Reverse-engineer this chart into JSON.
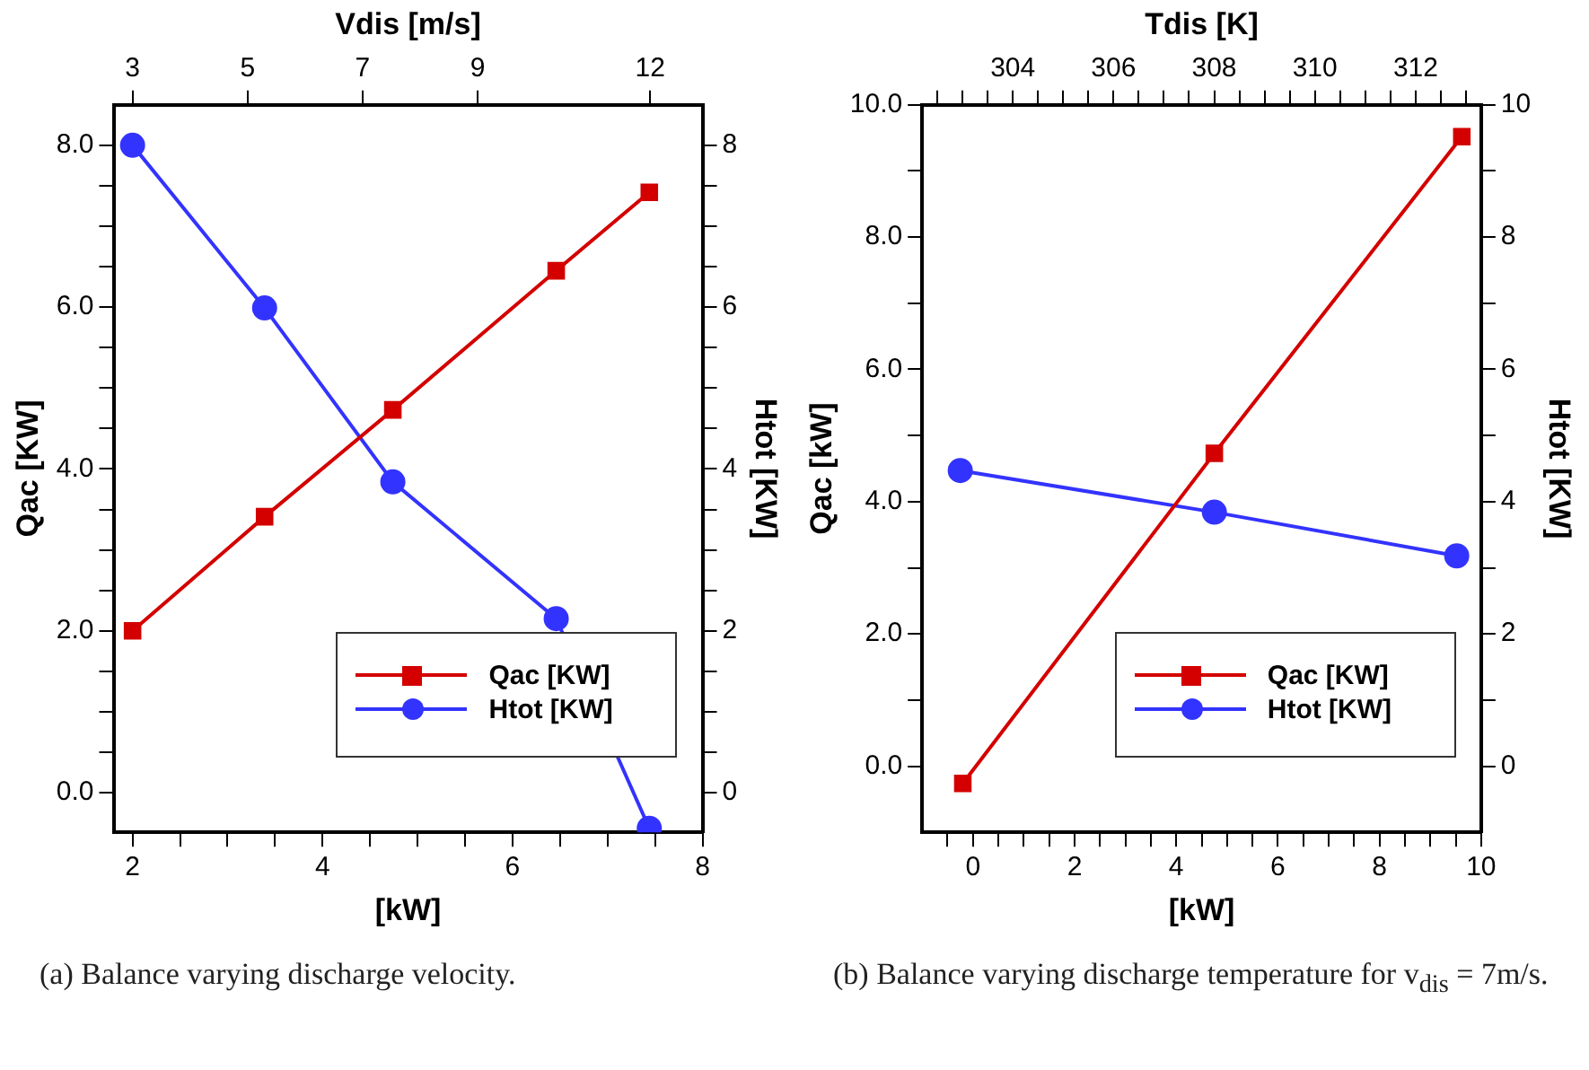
{
  "chart_data": [
    {
      "type": "line",
      "xlabel": "[kW]",
      "ylabel": "Qac [KW]",
      "y2label": "Htot [KW]",
      "x2label": "Vdis [m/s]",
      "legend": "bottom right",
      "xlim": [
        1.8,
        8
      ],
      "xticks": [
        2,
        {
          "value": 2.5,
          "label": null
        },
        {
          "value": 3,
          "label": null
        },
        {
          "value": 3.5,
          "label": null
        },
        4,
        {
          "value": 4.5,
          "label": null
        },
        {
          "value": 5,
          "label": null
        },
        {
          "value": 5.5,
          "label": null
        },
        6,
        {
          "value": 6.5,
          "label": null
        },
        {
          "value": 7,
          "label": null
        },
        {
          "value": 7.5,
          "label": null
        },
        8
      ],
      "x2lim": [
        2.67,
        12.91
      ],
      "x2ticks": [
        3,
        5,
        7,
        9,
        12
      ],
      "ylim": [
        -0.49,
        8.5
      ],
      "yticks": [
        {
          "value": 0,
          "label": "0.0"
        },
        {
          "value": 0.5,
          "label": null
        },
        {
          "value": 1,
          "label": null
        },
        {
          "value": 1.5,
          "label": null
        },
        {
          "value": 2,
          "label": "2.0"
        },
        {
          "value": 2.5,
          "label": null
        },
        {
          "value": 3,
          "label": null
        },
        {
          "value": 3.5,
          "label": null
        },
        {
          "value": 4,
          "label": "4.0"
        },
        {
          "value": 4.5,
          "label": null
        },
        {
          "value": 5,
          "label": null
        },
        {
          "value": 5.5,
          "label": null
        },
        {
          "value": 6,
          "label": "6.0"
        },
        {
          "value": 6.5,
          "label": null
        },
        {
          "value": 7,
          "label": null
        },
        {
          "value": 7.5,
          "label": null
        },
        {
          "value": 8,
          "label": "8.0"
        }
      ],
      "y2lim": [
        -0.49,
        8.5
      ],
      "y2ticks": [
        0,
        {
          "value": 0.5,
          "label": null
        },
        {
          "value": 1,
          "label": null
        },
        {
          "value": 1.5,
          "label": null
        },
        2,
        {
          "value": 2.5,
          "label": null
        },
        {
          "value": 3,
          "label": null
        },
        {
          "value": 3.5,
          "label": null
        },
        4,
        {
          "value": 4.5,
          "label": null
        },
        {
          "value": 5,
          "label": null
        },
        {
          "value": 5.5,
          "label": null
        },
        6,
        {
          "value": 6.5,
          "label": null
        },
        {
          "value": 7,
          "label": null
        },
        {
          "value": 7.5,
          "label": null
        },
        8
      ],
      "series": [
        {
          "name": "Qac [KW]",
          "color": "#d40000",
          "marker": "square",
          "x": [
            2,
            3.39,
            4.74,
            6.46,
            7.44
          ],
          "values": [
            2.0,
            3.41,
            4.73,
            6.45,
            7.42
          ]
        },
        {
          "name": "Htot [KW]",
          "color": "#3333ff",
          "marker": "circle",
          "x": [
            2,
            3.39,
            4.74,
            6.46,
            7.44
          ],
          "values": [
            8.0,
            5.99,
            3.84,
            2.15,
            -0.44
          ]
        }
      ],
      "annotations": [
        "(a) Balance varying discharge velocity."
      ]
    },
    {
      "type": "line",
      "xlabel": "[kW]",
      "ylabel": "Qac [kW]",
      "y2label": "Htot [KW]",
      "x2label": "Tdis [K]",
      "legend": "bottom right",
      "xlim": [
        -1,
        10
      ],
      "xticks": [
        {
          "value": -0.5,
          "label": null
        },
        0,
        {
          "value": 0.5,
          "label": null
        },
        {
          "value": 1,
          "label": null
        },
        {
          "value": 1.5,
          "label": null
        },
        2,
        {
          "value": 2.5,
          "label": null
        },
        {
          "value": 3,
          "label": null
        },
        {
          "value": 3.5,
          "label": null
        },
        4,
        {
          "value": 4.5,
          "label": null
        },
        {
          "value": 5,
          "label": null
        },
        {
          "value": 5.5,
          "label": null
        },
        6,
        {
          "value": 6.5,
          "label": null
        },
        {
          "value": 7,
          "label": null
        },
        {
          "value": 7.5,
          "label": null
        },
        8,
        {
          "value": 8.5,
          "label": null
        },
        {
          "value": 9,
          "label": null
        },
        {
          "value": 9.5,
          "label": null
        },
        10
      ],
      "x2lim": [
        302.2,
        313.3
      ],
      "x2ticks": [
        {
          "value": 302.5,
          "label": null
        },
        {
          "value": 303,
          "label": null
        },
        {
          "value": 303.5,
          "label": null
        },
        304,
        {
          "value": 304.5,
          "label": null
        },
        {
          "value": 305,
          "label": null
        },
        {
          "value": 305.5,
          "label": null
        },
        306,
        {
          "value": 306.5,
          "label": null
        },
        {
          "value": 307,
          "label": null
        },
        {
          "value": 307.5,
          "label": null
        },
        308,
        {
          "value": 308.5,
          "label": null
        },
        {
          "value": 309,
          "label": null
        },
        {
          "value": 309.5,
          "label": null
        },
        310,
        {
          "value": 310.5,
          "label": null
        },
        {
          "value": 311,
          "label": null
        },
        {
          "value": 311.5,
          "label": null
        },
        312,
        {
          "value": 312.5,
          "label": null
        },
        {
          "value": 313,
          "label": null
        }
      ],
      "ylim": [
        -1,
        10
      ],
      "yticks": [
        {
          "value": 0,
          "label": "0.0"
        },
        {
          "value": 1,
          "label": null
        },
        {
          "value": 2,
          "label": "2.0"
        },
        {
          "value": 3,
          "label": null
        },
        {
          "value": 4,
          "label": "4.0"
        },
        {
          "value": 5,
          "label": null
        },
        {
          "value": 6,
          "label": "6.0"
        },
        {
          "value": 7,
          "label": null
        },
        {
          "value": 8,
          "label": "8.0"
        },
        {
          "value": 9,
          "label": null
        },
        {
          "value": 10,
          "label": "10.0"
        }
      ],
      "y2lim": [
        -1,
        10
      ],
      "y2ticks": [
        0,
        {
          "value": 1,
          "label": null
        },
        2,
        {
          "value": 3,
          "label": null
        },
        4,
        {
          "value": 5,
          "label": null
        },
        6,
        {
          "value": 7,
          "label": null
        },
        8,
        {
          "value": 9,
          "label": null
        },
        10
      ],
      "series": [
        {
          "name": "Qac [KW]",
          "color": "#d40000",
          "marker": "square",
          "x": [
            -0.2,
            4.75,
            9.62
          ],
          "values": [
            -0.26,
            4.73,
            9.52
          ]
        },
        {
          "name": "Htot [KW]",
          "color": "#3333ff",
          "marker": "circle",
          "x": [
            -0.25,
            4.75,
            9.52
          ],
          "values": [
            4.47,
            3.84,
            3.18
          ]
        }
      ],
      "annotations": [
        "(b) Balance varying discharge temperature for v$_{dis}$ = 7m/s."
      ]
    }
  ]
}
